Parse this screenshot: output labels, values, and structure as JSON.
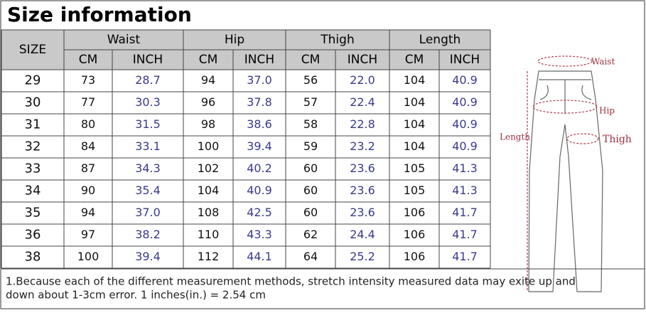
{
  "title": "Size information",
  "table": {
    "size_header": "SIZE",
    "groups": [
      "Waist",
      "Hip",
      "Thigh",
      "Length"
    ],
    "units": [
      "CM",
      "INCH",
      "CM",
      "INCH",
      "CM",
      "INCH",
      "CM",
      "INCH"
    ],
    "rows": [
      [
        "29",
        "73",
        "28.7",
        "94",
        "37.0",
        "56",
        "22.0",
        "104",
        "40.9"
      ],
      [
        "30",
        "77",
        "30.3",
        "96",
        "37.8",
        "57",
        "22.4",
        "104",
        "40.9"
      ],
      [
        "31",
        "80",
        "31.5",
        "98",
        "38.6",
        "58",
        "22.8",
        "104",
        "40.9"
      ],
      [
        "32",
        "84",
        "33.1",
        "100",
        "39.4",
        "59",
        "23.2",
        "104",
        "40.9"
      ],
      [
        "33",
        "87",
        "34.3",
        "102",
        "40.2",
        "60",
        "23.6",
        "105",
        "41.3"
      ],
      [
        "34",
        "90",
        "35.4",
        "104",
        "40.9",
        "60",
        "23.6",
        "105",
        "41.3"
      ],
      [
        "35",
        "94",
        "37.0",
        "108",
        "42.5",
        "60",
        "23.6",
        "106",
        "41.7"
      ],
      [
        "36",
        "97",
        "38.2",
        "110",
        "43.3",
        "62",
        "24.4",
        "106",
        "41.7"
      ],
      [
        "38",
        "100",
        "39.4",
        "112",
        "44.1",
        "64",
        "25.2",
        "106",
        "41.7"
      ]
    ]
  },
  "diagram": {
    "waist": "Waist",
    "hip": "Hip",
    "thigh": "Thigh",
    "length": "Length"
  },
  "footer": [
    "1.Because each of the different measurement methods, stretch intensity measured data may exite up and",
    "down  about 1-3cm error.      1 inches(in.) = 2.54 cm"
  ]
}
